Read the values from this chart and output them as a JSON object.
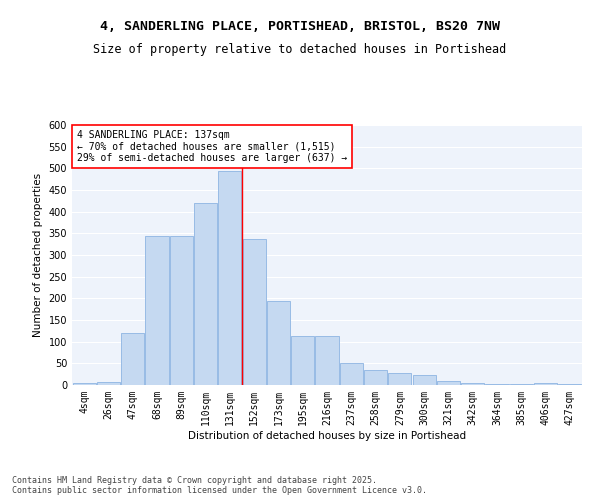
{
  "title_line1": "4, SANDERLING PLACE, PORTISHEAD, BRISTOL, BS20 7NW",
  "title_line2": "Size of property relative to detached houses in Portishead",
  "xlabel": "Distribution of detached houses by size in Portishead",
  "ylabel": "Number of detached properties",
  "categories": [
    "4sqm",
    "26sqm",
    "47sqm",
    "68sqm",
    "89sqm",
    "110sqm",
    "131sqm",
    "152sqm",
    "173sqm",
    "195sqm",
    "216sqm",
    "237sqm",
    "258sqm",
    "279sqm",
    "300sqm",
    "321sqm",
    "342sqm",
    "364sqm",
    "385sqm",
    "406sqm",
    "427sqm"
  ],
  "values": [
    5,
    7,
    120,
    345,
    345,
    420,
    495,
    338,
    195,
    113,
    113,
    50,
    35,
    28,
    22,
    10,
    5,
    3,
    3,
    5,
    3
  ],
  "bar_color": "#C5D9F1",
  "bar_edge_color": "#8DB4E2",
  "bg_color": "#EEF3FB",
  "vline_x": 6.5,
  "vline_color": "red",
  "annotation_text": "4 SANDERLING PLACE: 137sqm\n← 70% of detached houses are smaller (1,515)\n29% of semi-detached houses are larger (637) →",
  "annotation_box_color": "white",
  "annotation_box_edge": "red",
  "ylim": [
    0,
    600
  ],
  "yticks": [
    0,
    50,
    100,
    150,
    200,
    250,
    300,
    350,
    400,
    450,
    500,
    550,
    600
  ],
  "footer": "Contains HM Land Registry data © Crown copyright and database right 2025.\nContains public sector information licensed under the Open Government Licence v3.0.",
  "title_fontsize": 9.5,
  "subtitle_fontsize": 8.5,
  "axis_label_fontsize": 7.5,
  "tick_fontsize": 7,
  "annotation_fontsize": 7,
  "footer_fontsize": 6
}
